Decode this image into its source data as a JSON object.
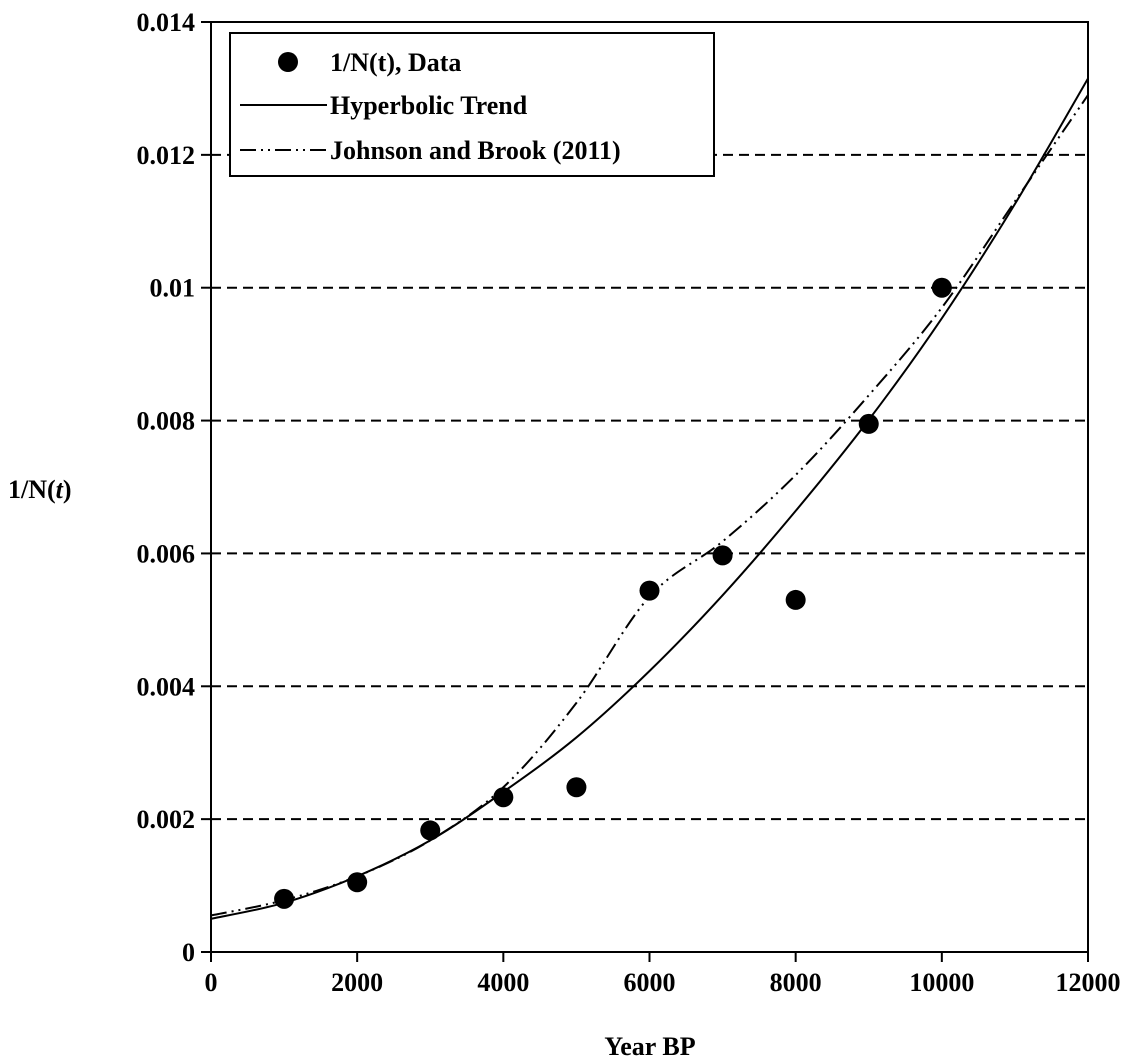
{
  "chart_data": {
    "type": "scatter",
    "xlabel": "Year BP",
    "ylabel_main": "1/N(",
    "ylabel_italic": "t",
    "ylabel_close": ")",
    "xlim": [
      0,
      12000
    ],
    "ylim": [
      0,
      0.014
    ],
    "x_ticks": [
      "0",
      "2000",
      "4000",
      "6000",
      "8000",
      "10000",
      "12000"
    ],
    "y_ticks": [
      "0",
      "0.002",
      "0.004",
      "0.006",
      "0.008",
      "0.01",
      "0.012",
      "0.014"
    ],
    "grid": "horizontal dashed",
    "legend_position": "top-left",
    "series": [
      {
        "name": "1/N(t), Data",
        "kind": "points",
        "x": [
          1000,
          2000,
          3000,
          4000,
          5000,
          6000,
          7000,
          8000,
          9000,
          10000
        ],
        "y": [
          0.0008,
          0.00105,
          0.00183,
          0.00233,
          0.00248,
          0.00544,
          0.00597,
          0.0053,
          0.00795,
          0.01
        ]
      },
      {
        "name": "Hyperbolic Trend",
        "kind": "solid-line",
        "x": [
          0,
          1000,
          2000,
          3000,
          4000,
          5000,
          6000,
          7000,
          8000,
          9000,
          10000,
          11000,
          12000
        ],
        "y": [
          0.0005,
          0.00074,
          0.00114,
          0.00168,
          0.00241,
          0.00323,
          0.00423,
          0.00537,
          0.00664,
          0.00801,
          0.00954,
          0.01126,
          0.01315
        ]
      },
      {
        "name": "Johnson and Brook (2011)",
        "kind": "dash-dot-dot-line",
        "x": [
          0,
          1000,
          2000,
          3000,
          4000,
          5000,
          6000,
          7000,
          8000,
          9000,
          10000,
          11000,
          12000
        ],
        "y": [
          0.00055,
          0.00078,
          0.00114,
          0.00168,
          0.00248,
          0.00375,
          0.00535,
          0.00618,
          0.00718,
          0.00838,
          0.0097,
          0.0113,
          0.0129
        ]
      }
    ]
  }
}
